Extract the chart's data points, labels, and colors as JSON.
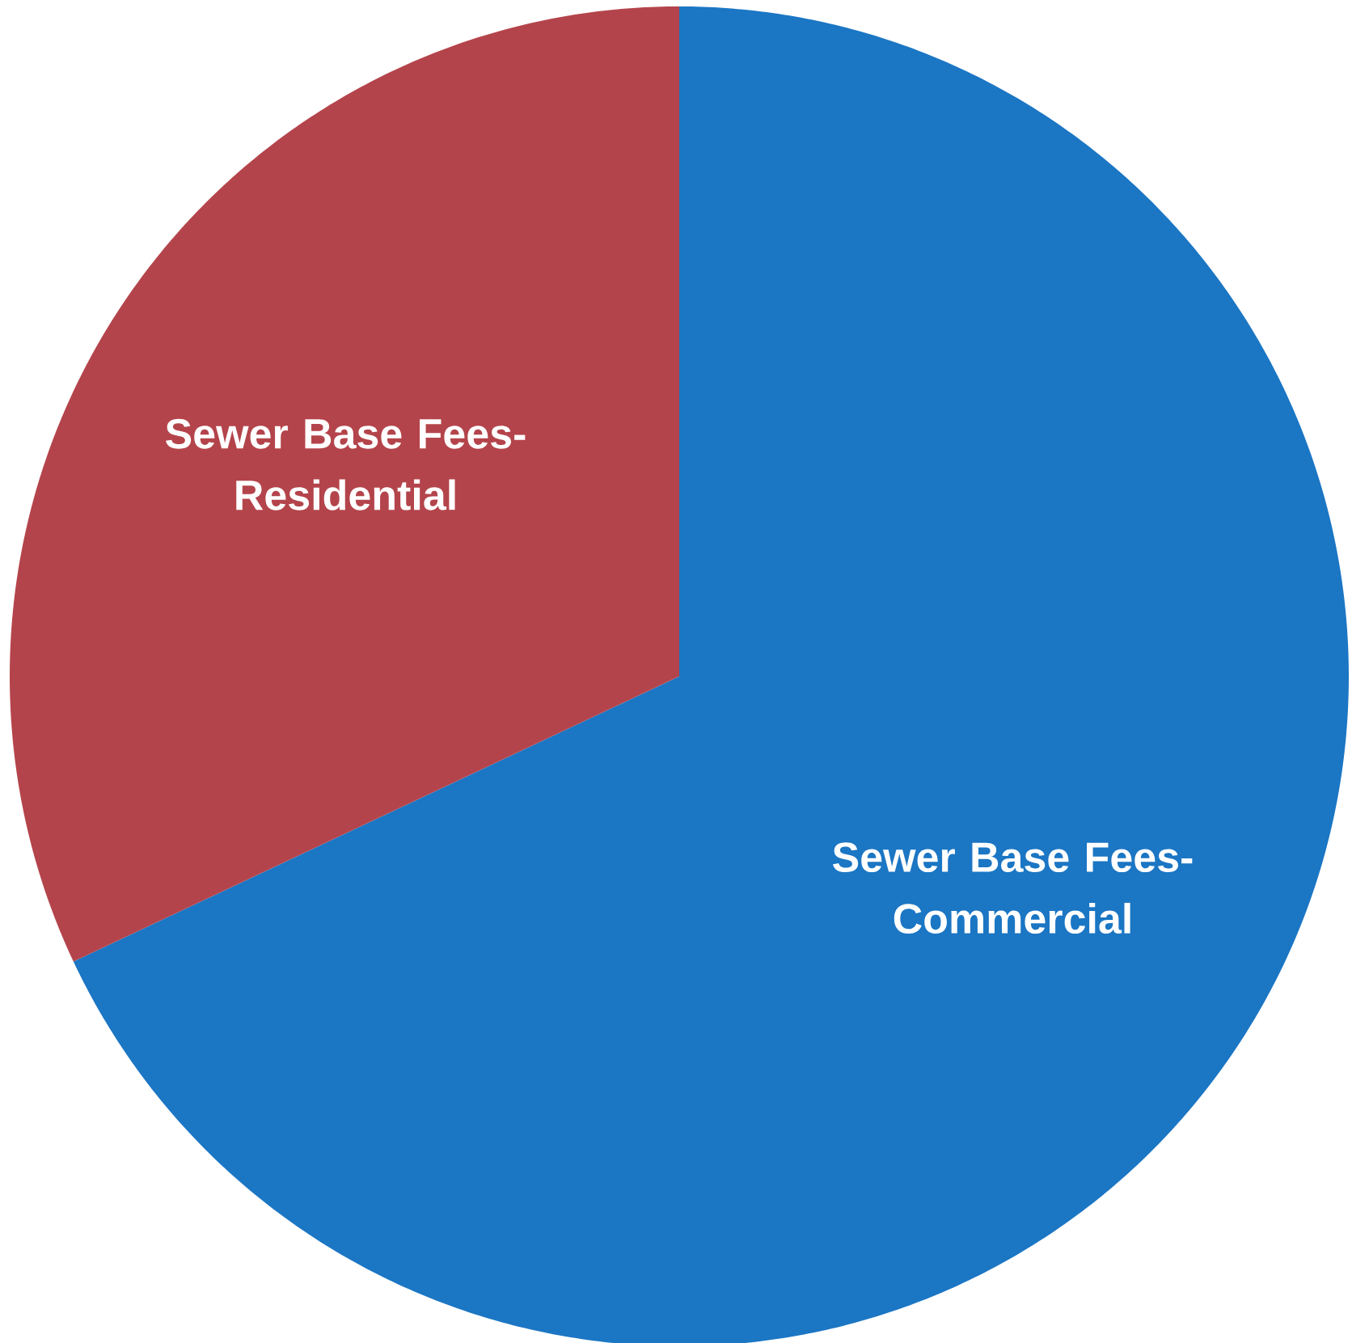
{
  "chart_data": {
    "type": "pie",
    "categories": [
      "Sewer Base Fees-Commercial",
      "Sewer Base Fees-Residential"
    ],
    "values": [
      68,
      32
    ],
    "colors": [
      "#1b76c4",
      "#b4444b"
    ]
  }
}
